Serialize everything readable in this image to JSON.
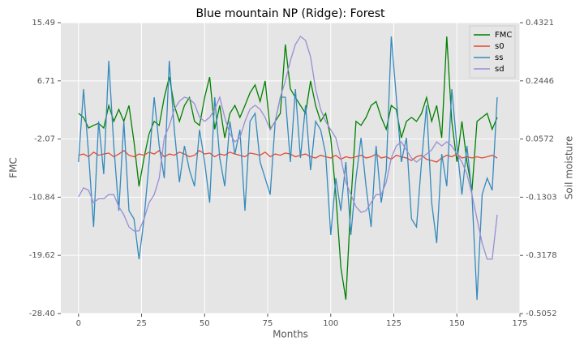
{
  "chart_data": {
    "type": "line",
    "title": "Blue mountain NP (Ridge): Forest",
    "xlabel": "Months",
    "ylabel": "FMC",
    "y2label": "Soil moisture",
    "x": [
      0,
      2,
      4,
      6,
      8,
      10,
      12,
      14,
      16,
      18,
      20,
      22,
      24,
      26,
      28,
      30,
      32,
      34,
      36,
      38,
      40,
      42,
      44,
      46,
      48,
      50,
      52,
      54,
      56,
      58,
      60,
      62,
      64,
      66,
      68,
      70,
      72,
      74,
      76,
      78,
      80,
      82,
      84,
      86,
      88,
      90,
      92,
      94,
      96,
      98,
      100,
      102,
      104,
      106,
      108,
      110,
      112,
      114,
      116,
      118,
      120,
      122,
      124,
      126,
      128,
      130,
      132,
      134,
      136,
      138,
      140,
      142,
      144,
      146,
      148,
      150,
      152,
      154,
      156,
      158,
      160,
      162,
      164,
      166
    ],
    "xlim": [
      -7,
      175
    ],
    "xticks": [
      0,
      25,
      50,
      75,
      100,
      125,
      150,
      175
    ],
    "ylim": [
      -28.4,
      15.49
    ],
    "yticks": [
      {
        "value": -28.4,
        "label": "-28.40"
      },
      -19.62,
      -10.84,
      -2.07,
      6.71,
      15.49
    ],
    "y2lim": [
      -0.5052,
      0.4321
    ],
    "y2ticks": [
      -0.5052,
      -0.3178,
      -0.1303,
      0.0572,
      0.2446,
      0.4321
    ],
    "grid": true,
    "legend": "upper right",
    "series": [
      {
        "name": "FMC",
        "color": "#008000",
        "values": [
          1.8,
          1.2,
          -0.4,
          0.0,
          0.3,
          -0.4,
          3.0,
          0.6,
          2.4,
          0.6,
          3.0,
          -2.5,
          -9.2,
          -4.9,
          -1.3,
          0.6,
          0.0,
          4.2,
          7.3,
          3.0,
          0.6,
          3.0,
          4.2,
          0.6,
          0.0,
          4.2,
          7.3,
          -0.6,
          3.0,
          -1.9,
          1.8,
          3.0,
          1.2,
          3.0,
          4.9,
          6.1,
          3.6,
          6.7,
          -0.6,
          0.6,
          1.8,
          12.2,
          5.5,
          4.2,
          3.0,
          1.8,
          6.7,
          3.0,
          0.6,
          1.8,
          -1.9,
          -10.4,
          -21.4,
          -26.3,
          -11.6,
          0.6,
          0.0,
          1.2,
          3.0,
          3.6,
          1.2,
          -0.6,
          3.0,
          2.4,
          -1.9,
          0.6,
          1.2,
          0.6,
          1.8,
          4.2,
          0.6,
          3.0,
          -1.9,
          13.4,
          0.6,
          -5.5,
          0.6,
          -5.5,
          -9.8,
          0.6,
          1.2,
          1.8,
          -0.6,
          1.2
        ]
      },
      {
        "name": "s0",
        "color": "#e24a33",
        "axis": "y2",
        "values": [
          0.005,
          0.009,
          0.0,
          0.015,
          0.005,
          0.009,
          0.012,
          0.0,
          0.009,
          0.02,
          0.005,
          0.0,
          0.009,
          0.005,
          0.015,
          0.009,
          0.02,
          0.0,
          0.009,
          0.005,
          0.015,
          0.009,
          0.0,
          0.005,
          0.02,
          0.009,
          0.012,
          0.0,
          0.009,
          0.005,
          0.015,
          0.009,
          0.005,
          0.0,
          0.012,
          0.009,
          0.005,
          0.015,
          0.0,
          0.009,
          0.005,
          0.012,
          0.009,
          0.0,
          0.005,
          0.009,
          0.0,
          -0.004,
          0.005,
          0.0,
          -0.004,
          0.005,
          -0.008,
          0.0,
          -0.004,
          0.0,
          0.005,
          -0.004,
          0.0,
          0.009,
          -0.004,
          0.0,
          -0.008,
          0.005,
          0.0,
          -0.004,
          -0.012,
          0.0,
          0.005,
          -0.008,
          -0.012,
          -0.017,
          -0.004,
          0.005,
          0.0,
          0.009,
          -0.004,
          0.0,
          -0.004,
          0.0,
          -0.004,
          0.0,
          0.005,
          -0.004
        ]
      },
      {
        "name": "ss",
        "color": "#348abd",
        "axis": "y2",
        "values": [
          -0.017,
          0.218,
          0.009,
          -0.226,
          0.114,
          -0.056,
          0.309,
          0.035,
          -0.174,
          0.114,
          -0.174,
          -0.2,
          -0.33,
          -0.2,
          -0.017,
          0.192,
          0.035,
          -0.069,
          0.309,
          0.087,
          -0.082,
          0.035,
          -0.043,
          -0.095,
          0.087,
          -0.017,
          -0.148,
          0.192,
          -0.004,
          -0.095,
          0.114,
          0.009,
          0.087,
          -0.174,
          0.114,
          0.14,
          -0.017,
          -0.069,
          -0.122,
          0.114,
          0.192,
          0.192,
          -0.017,
          0.218,
          -0.004,
          0.166,
          -0.043,
          0.114,
          0.087,
          0.009,
          -0.252,
          -0.069,
          -0.174,
          -0.017,
          -0.252,
          -0.069,
          0.061,
          -0.095,
          -0.226,
          0.035,
          -0.148,
          -0.043,
          0.388,
          0.192,
          -0.017,
          0.061,
          -0.2,
          -0.226,
          -0.017,
          0.166,
          -0.148,
          -0.278,
          0.009,
          -0.095,
          0.218,
          0.035,
          -0.122,
          0.035,
          -0.122,
          -0.461,
          -0.122,
          -0.069,
          -0.108,
          0.192
        ]
      },
      {
        "name": "sd",
        "color": "#988ed5",
        "axis": "y2",
        "values": [
          -0.129,
          -0.1,
          -0.108,
          -0.148,
          -0.135,
          -0.135,
          -0.122,
          -0.122,
          -0.161,
          -0.187,
          -0.226,
          -0.239,
          -0.239,
          -0.2,
          -0.148,
          -0.122,
          -0.069,
          0.061,
          0.1,
          0.153,
          0.179,
          0.192,
          0.187,
          0.171,
          0.127,
          0.114,
          0.127,
          0.153,
          0.192,
          0.127,
          0.074,
          0.048,
          0.061,
          0.114,
          0.153,
          0.166,
          0.153,
          0.127,
          0.087,
          0.114,
          0.192,
          0.244,
          0.309,
          0.362,
          0.388,
          0.375,
          0.322,
          0.218,
          0.153,
          0.114,
          0.087,
          0.061,
          -0.004,
          -0.082,
          -0.122,
          -0.161,
          -0.179,
          -0.174,
          -0.148,
          -0.122,
          -0.122,
          -0.082,
          -0.004,
          0.035,
          0.048,
          0.022,
          -0.004,
          -0.017,
          -0.004,
          0.009,
          0.022,
          0.048,
          0.035,
          0.048,
          0.035,
          0.009,
          -0.017,
          -0.056,
          -0.122,
          -0.2,
          -0.278,
          -0.33,
          -0.33,
          -0.187
        ]
      }
    ]
  }
}
